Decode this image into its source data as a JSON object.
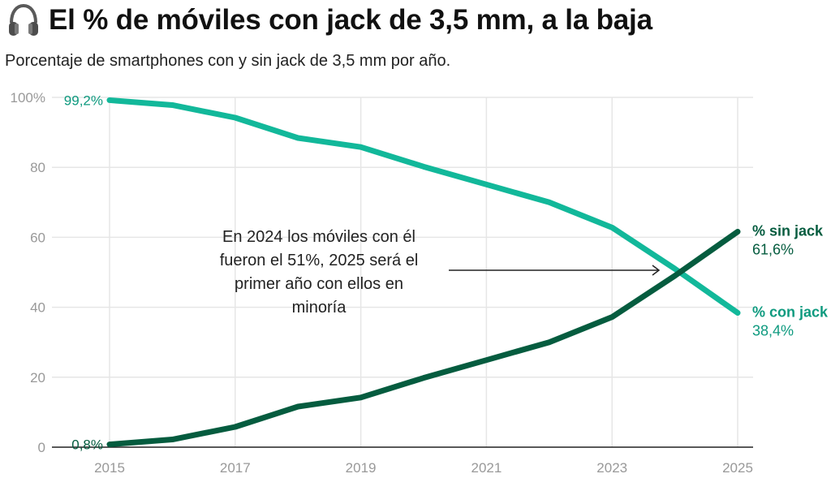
{
  "header": {
    "icon": "headphones-icon",
    "title": "El % de móviles con jack de 3,5 mm, a la baja",
    "subtitle": "Porcentaje de smartphones con y sin jack de 3,5 mm por año."
  },
  "colors": {
    "con_jack": "#12b89a",
    "sin_jack": "#055c3f",
    "con_jack_label": "#0e9a7f",
    "sin_jack_label": "#055c3f",
    "grid": "#e6e6e6",
    "axis": "#222222",
    "tick": "#999999"
  },
  "chart_data": {
    "type": "line",
    "title": "El % de móviles con jack de 3,5 mm, a la baja",
    "subtitle": "Porcentaje de smartphones con y sin jack de 3,5 mm por año.",
    "xlabel": "",
    "ylabel": "",
    "x": [
      2015,
      2016,
      2017,
      2018,
      2019,
      2020,
      2021,
      2022,
      2023,
      2024,
      2025
    ],
    "xlim": [
      2015,
      2025
    ],
    "ylim": [
      0,
      100
    ],
    "x_ticks": [
      "2015",
      "2017",
      "2019",
      "2021",
      "2023",
      "2025"
    ],
    "x_tick_values": [
      2015,
      2017,
      2019,
      2021,
      2023,
      2025
    ],
    "y_ticks": [
      "100%",
      "80",
      "60",
      "40",
      "20",
      "0"
    ],
    "y_tick_values": [
      100,
      80,
      60,
      40,
      20,
      0
    ],
    "grid": true,
    "legend": "end-of-line labels (right)",
    "series": [
      {
        "name": "% con jack",
        "key": "con_jack",
        "values": [
          99.2,
          97.8,
          94.2,
          88.4,
          85.8,
          80.2,
          75.1,
          70.0,
          62.8,
          51.0,
          38.4
        ],
        "start_label": "99,2%",
        "end_label": "38,4%"
      },
      {
        "name": "% sin jack",
        "key": "sin_jack",
        "values": [
          0.8,
          2.2,
          5.8,
          11.6,
          14.2,
          19.8,
          24.9,
          30.0,
          37.2,
          49.0,
          61.6
        ],
        "start_label": "0,8%",
        "end_label": "61,6%"
      }
    ],
    "annotations": [
      {
        "text_lines": [
          "En 2024 los móviles con él",
          "fueron el 51%, 2025 será el",
          "primer año con ellos en",
          "minoría"
        ],
        "points_to": {
          "x": 2024,
          "y": 51
        }
      }
    ]
  }
}
